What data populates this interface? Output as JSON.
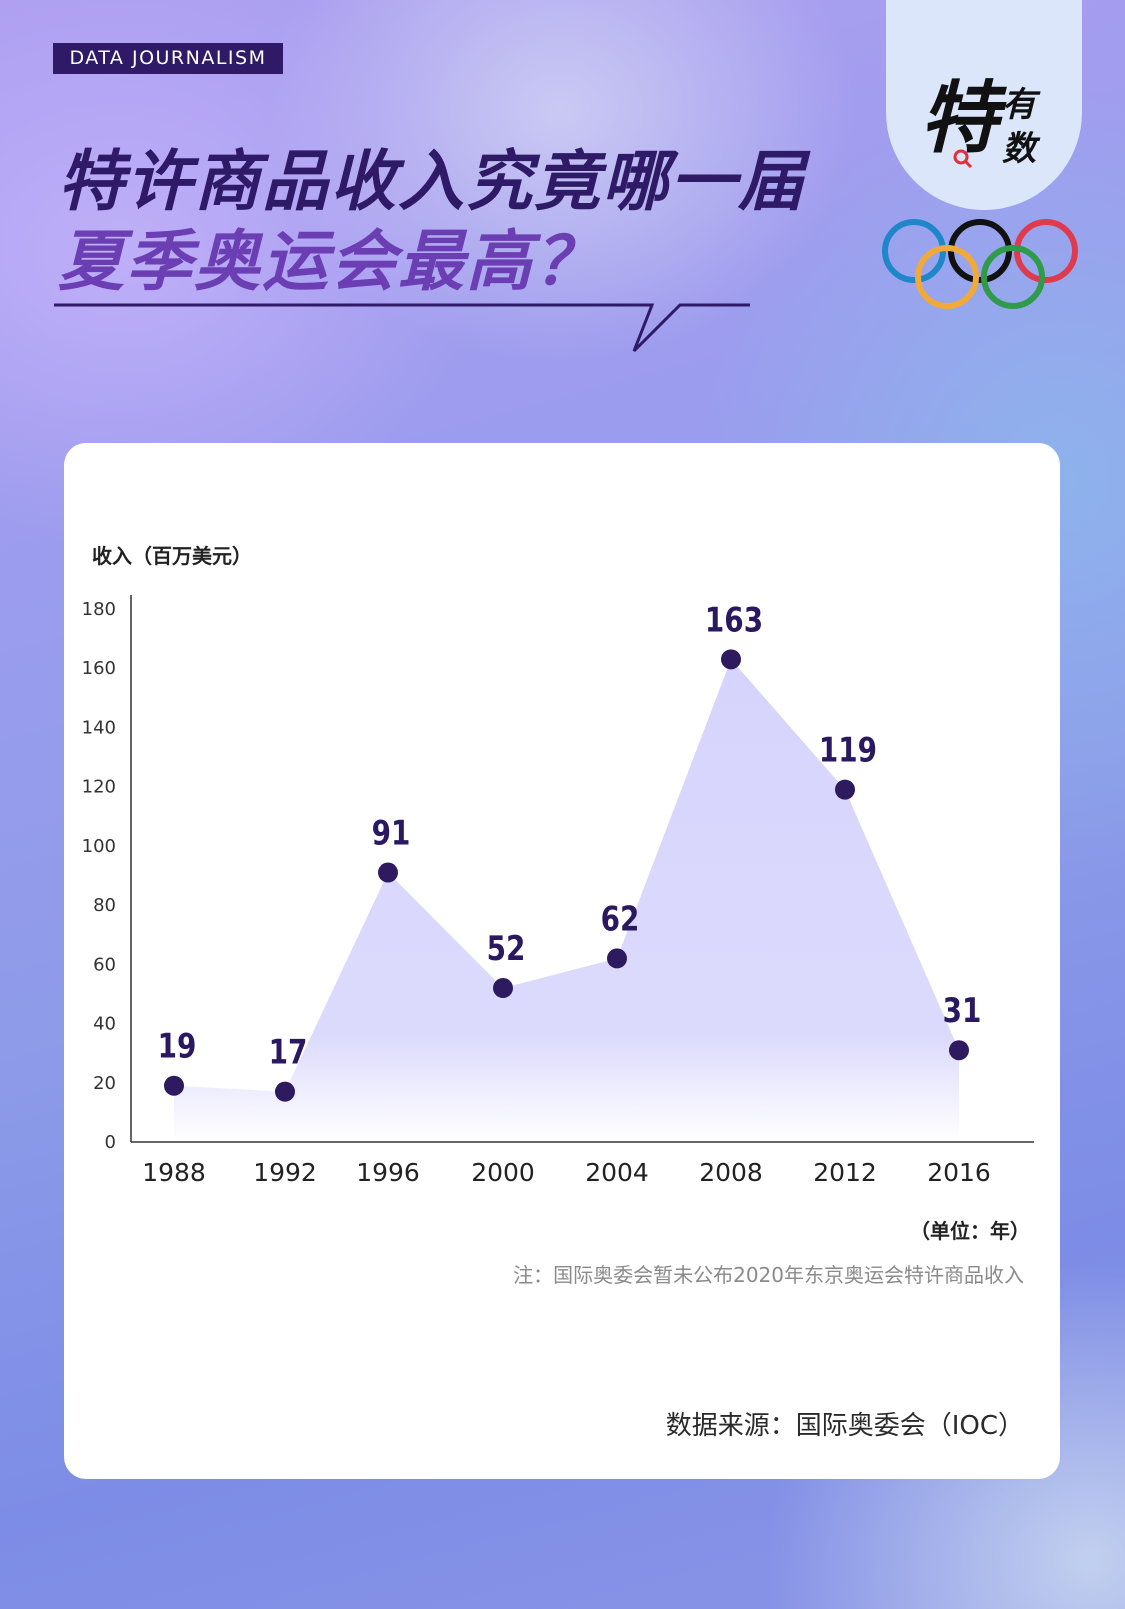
{
  "tag": "DATA JOURNALISM",
  "title_line1": "特许商品收入究竟哪一届",
  "title_line2": "夏季奥运会最高？",
  "logo": {
    "main": "特",
    "sub1": "有",
    "sub2": "数"
  },
  "colors": {
    "dark_purple": "#2e1a66",
    "accent_purple": "#6b3fb3",
    "marker": "#2e1a5e",
    "area": "#d4d3fb",
    "ring_blue": "#1f86c8",
    "ring_yellow": "#f0a93a",
    "ring_black": "#111111",
    "ring_green": "#2f9b4a",
    "ring_red": "#df3b4f"
  },
  "chart_data": {
    "type": "area",
    "ylabel": "收入（百万美元）",
    "unit_label": "（单位：年）",
    "categories": [
      "1988",
      "1992",
      "1996",
      "2000",
      "2004",
      "2008",
      "2012",
      "2016"
    ],
    "values": [
      19,
      17,
      91,
      52,
      62,
      163,
      119,
      31
    ],
    "data_labels": [
      "19",
      "17",
      "91",
      "52",
      "62",
      "163",
      "119",
      "31"
    ],
    "ylim": [
      0,
      180
    ],
    "yticks": [
      "0",
      "20",
      "40",
      "60",
      "80",
      "100",
      "120",
      "140",
      "160",
      "180"
    ],
    "grid": false,
    "legend": "none"
  },
  "note": "注：国际奥委会暂未公布2020年东京奥运会特许商品收入",
  "source": "数据来源：国际奥委会（IOC）"
}
